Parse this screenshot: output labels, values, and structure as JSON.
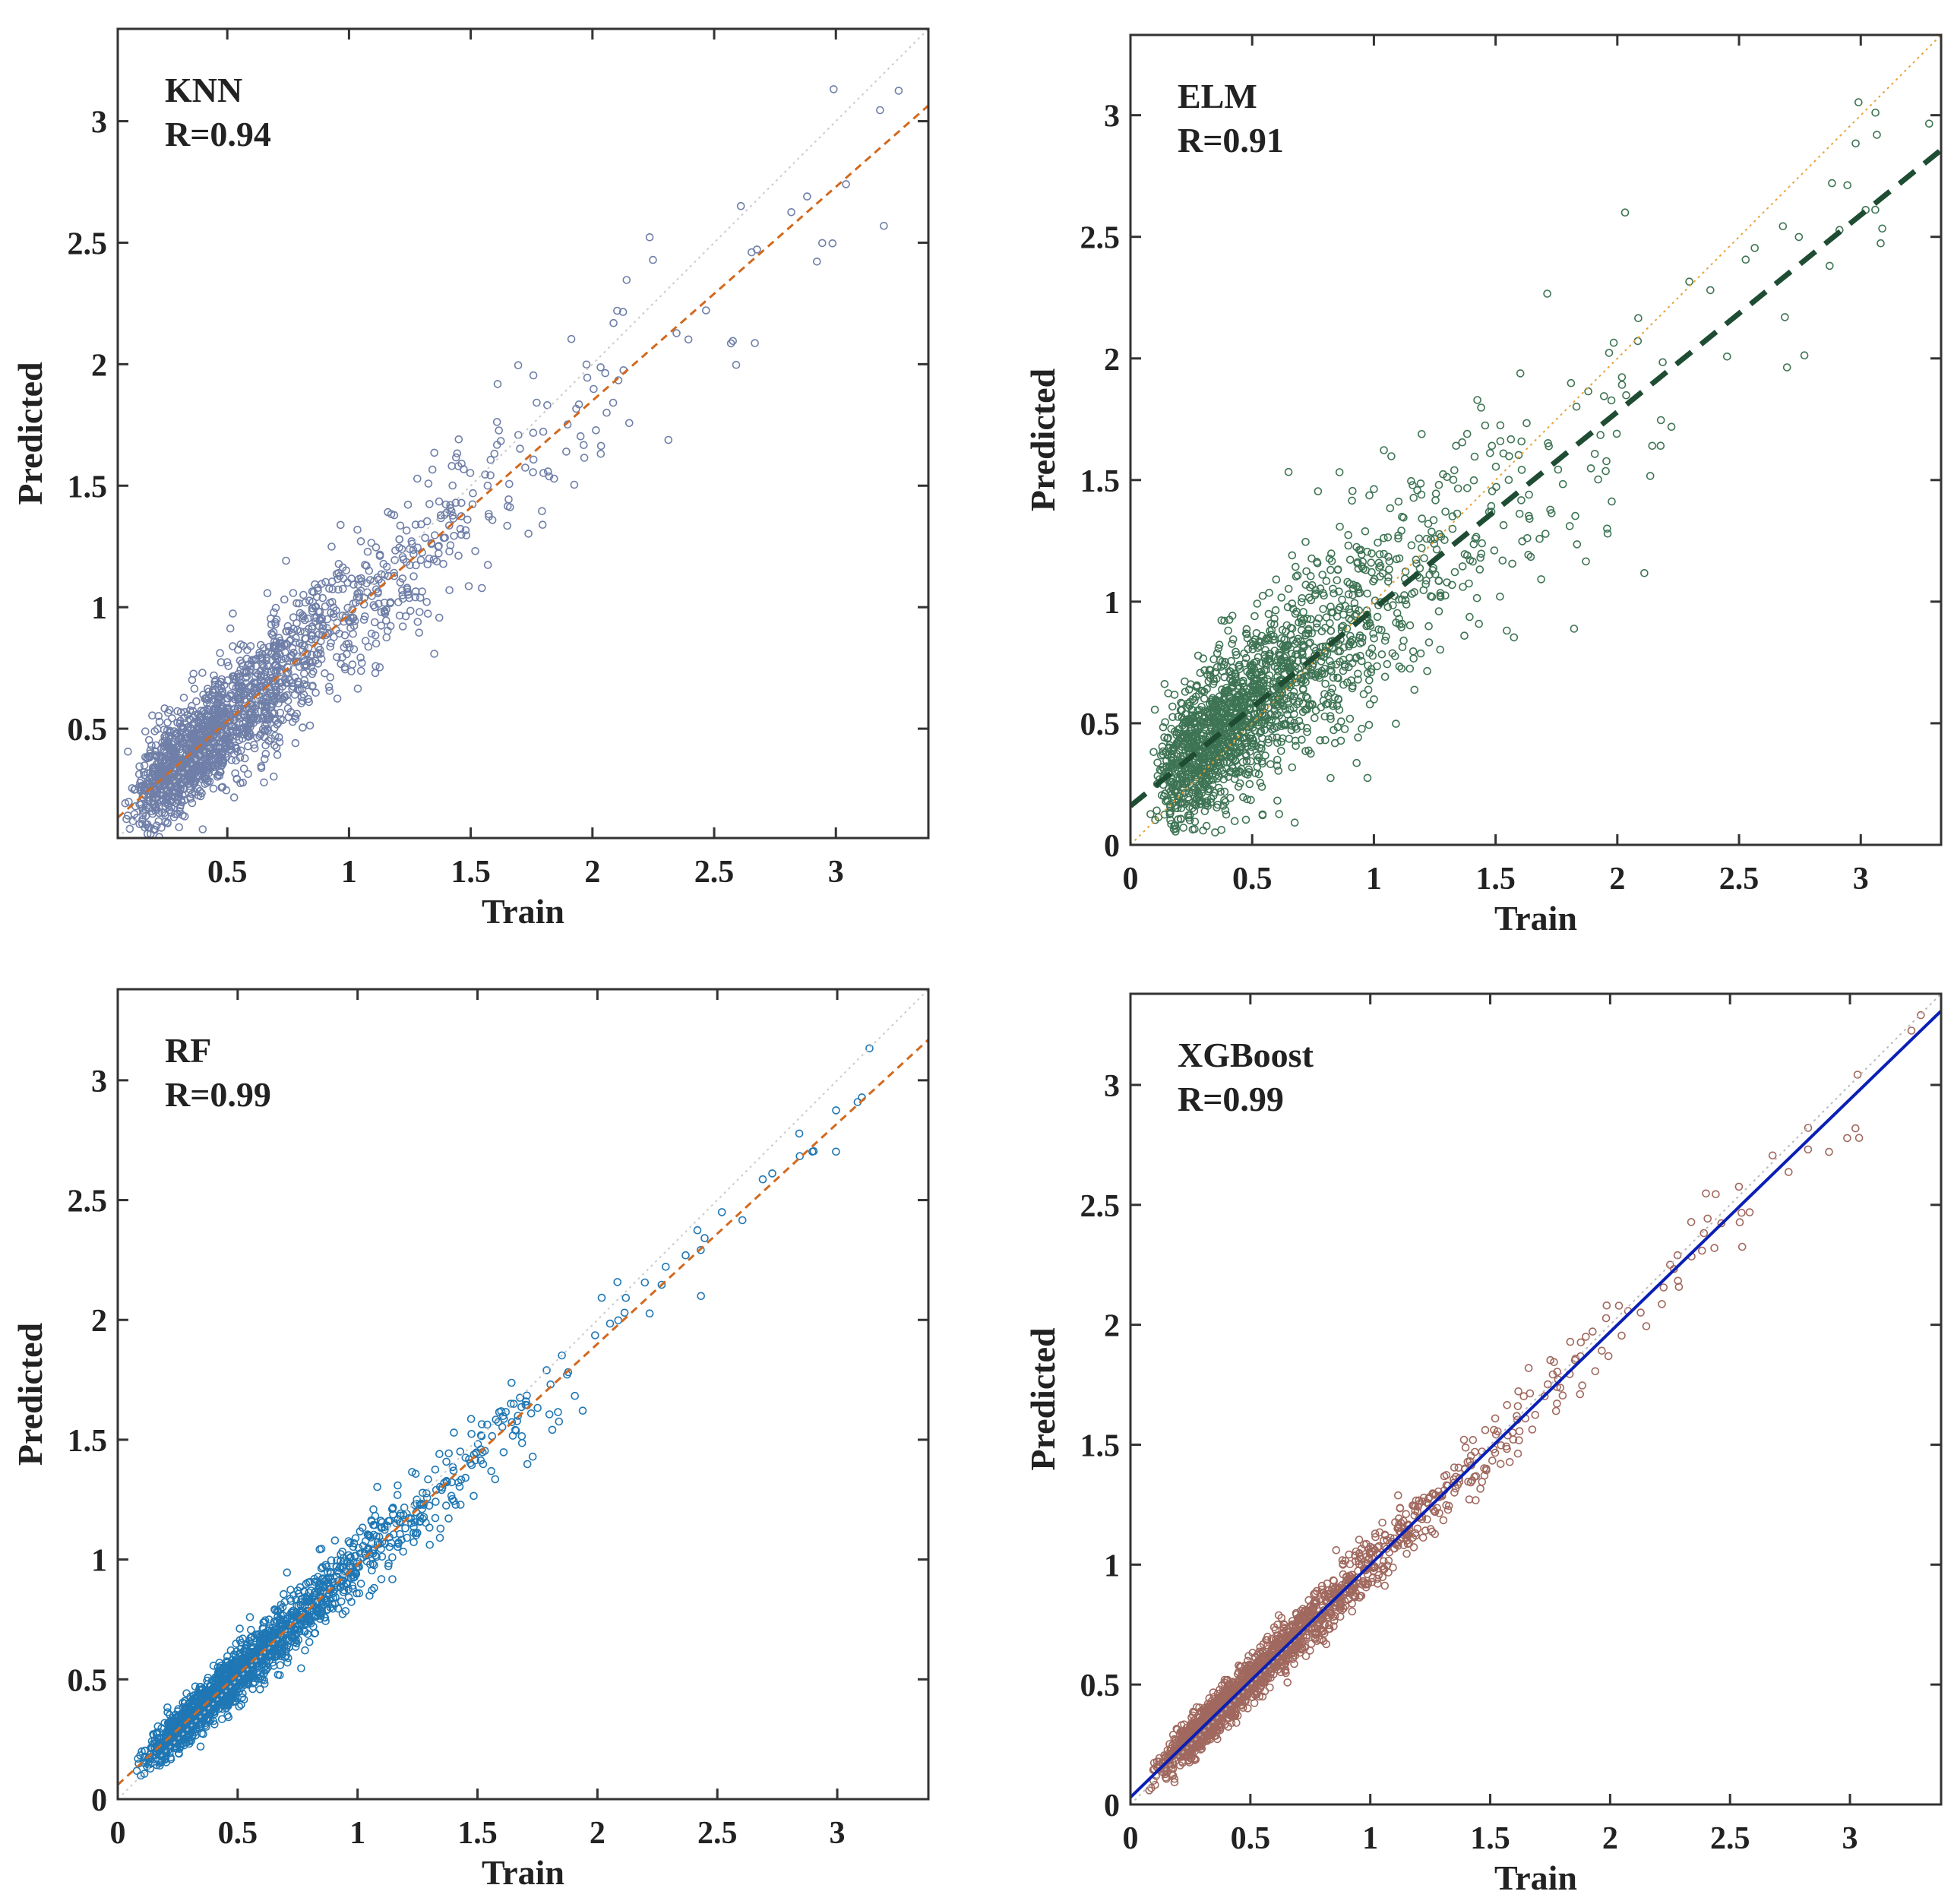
{
  "chart_data": [
    {
      "id": "knn",
      "type": "scatter",
      "model": "KNN",
      "annotation": "R=0.94",
      "xlabel": "Train",
      "ylabel": "Predicted",
      "xlim": [
        0.05,
        3.38
      ],
      "ylim": [
        0.05,
        3.38
      ],
      "xticks": [
        0.5,
        1,
        1.5,
        2,
        2.5,
        3
      ],
      "xticklabels": [
        "0.5",
        "1",
        "1.5",
        "2",
        "2.5",
        "3"
      ],
      "yticks": [
        0.5,
        1,
        1.5,
        2,
        2.5,
        3
      ],
      "yticklabels": [
        "0.5",
        "1",
        "1.5",
        "2",
        "2.5",
        "3"
      ],
      "point_color": "#6f7fa8",
      "n_points": 1800,
      "noise": 0.15,
      "fit_line": {
        "slope": 0.88,
        "intercept": 0.09,
        "color": "#d2691e",
        "style": "dashed"
      },
      "identity_line": {
        "color": "#cccccc",
        "style": "dotted"
      }
    },
    {
      "id": "elm",
      "type": "scatter",
      "model": "ELM",
      "annotation": "R=0.91",
      "xlabel": "Train",
      "ylabel": "Predicted",
      "xlim": [
        0,
        3.33
      ],
      "ylim": [
        0,
        3.33
      ],
      "xticks": [
        0,
        0.5,
        1,
        1.5,
        2,
        2.5,
        3
      ],
      "xticklabels": [
        "0",
        "0.5",
        "1",
        "1.5",
        "2",
        "2.5",
        "3"
      ],
      "yticks": [
        0,
        0.5,
        1,
        1.5,
        2,
        2.5,
        3
      ],
      "yticklabels": [
        "0",
        "0.5",
        "1",
        "1.5",
        "2",
        "2.5",
        "3"
      ],
      "point_color": "#3e7454",
      "n_points": 1800,
      "noise": 0.22,
      "fit_line": {
        "slope": 0.81,
        "intercept": 0.16,
        "color": "#1f4d33",
        "style": "dashed-thick"
      },
      "identity_line": {
        "color": "#e8a33a",
        "style": "dotted"
      }
    },
    {
      "id": "rf",
      "type": "scatter",
      "model": "RF",
      "annotation": "R=0.99",
      "xlabel": "Train",
      "ylabel": "Predicted",
      "xlim": [
        0,
        3.38
      ],
      "ylim": [
        0,
        3.38
      ],
      "xticks": [
        0,
        0.5,
        1,
        1.5,
        2,
        2.5,
        3
      ],
      "xticklabels": [
        "0",
        "0.5",
        "1",
        "1.5",
        "2",
        "2.5",
        "3"
      ],
      "yticks": [
        0,
        0.5,
        1,
        1.5,
        2,
        2.5,
        3
      ],
      "yticklabels": [
        "0",
        "0.5",
        "1",
        "1.5",
        "2",
        "2.5",
        "3"
      ],
      "point_color": "#1f77b4",
      "n_points": 1800,
      "noise": 0.07,
      "fit_line": {
        "slope": 0.92,
        "intercept": 0.06,
        "color": "#d2691e",
        "style": "dashed"
      },
      "identity_line": {
        "color": "#cccccc",
        "style": "dotted"
      }
    },
    {
      "id": "xgb",
      "type": "scatter",
      "model": "XGBoost",
      "annotation": "R=0.99",
      "xlabel": "Train",
      "ylabel": "Predicted",
      "xlim": [
        0,
        3.38
      ],
      "ylim": [
        0,
        3.38
      ],
      "xticks": [
        0,
        0.5,
        1,
        1.5,
        2,
        2.5,
        3
      ],
      "xticklabels": [
        "0",
        "0.5",
        "1",
        "1.5",
        "2",
        "2.5",
        "3"
      ],
      "yticks": [
        0,
        0.5,
        1,
        1.5,
        2,
        2.5,
        3
      ],
      "yticklabels": [
        "0",
        "0.5",
        "1",
        "1.5",
        "2",
        "2.5",
        "3"
      ],
      "point_color": "#a0685e",
      "n_points": 1800,
      "noise": 0.06,
      "fit_line": {
        "slope": 0.97,
        "intercept": 0.03,
        "color": "#0a1fb5",
        "style": "solid"
      },
      "identity_line": {
        "color": "#bbbbbb",
        "style": "dotted"
      }
    }
  ]
}
